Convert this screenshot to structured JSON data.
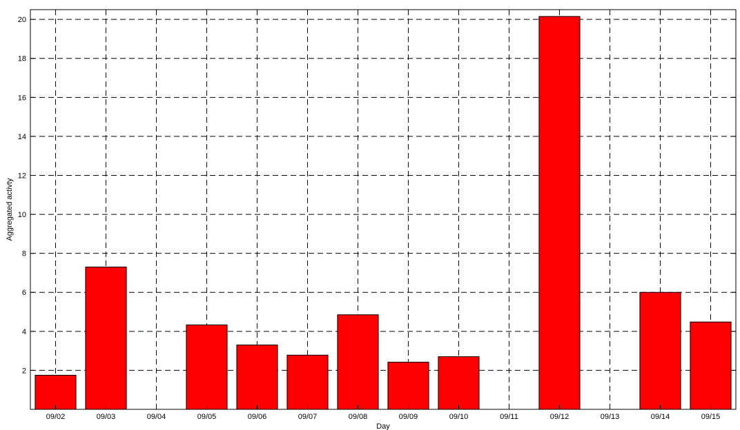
{
  "chart_data": {
    "type": "bar",
    "categories": [
      "09/02",
      "09/03",
      "09/04",
      "09/05",
      "09/06",
      "09/07",
      "09/08",
      "09/09",
      "09/10",
      "09/11",
      "09/12",
      "09/13",
      "09/14",
      "09/15"
    ],
    "values": [
      1.75,
      7.3,
      0,
      4.33,
      3.3,
      2.78,
      4.85,
      2.42,
      2.7,
      0,
      20.15,
      0,
      6.0,
      4.48
    ],
    "xlabel": "Day",
    "ylabel": "Aggregated activty",
    "ylim": [
      0,
      20.5
    ],
    "yticks": [
      2,
      4,
      6,
      8,
      10,
      12,
      14,
      16,
      18,
      20
    ],
    "grid": true,
    "bar_color": "#ff0000"
  }
}
